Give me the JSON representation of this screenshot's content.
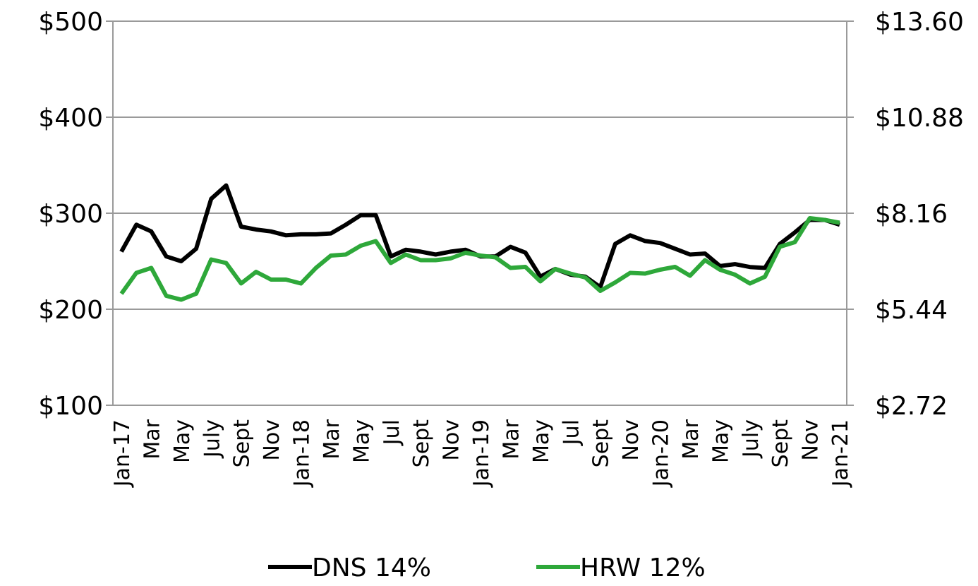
{
  "chart_data": {
    "type": "line",
    "categories": [
      "Jan-17",
      null,
      "Mar",
      null,
      "May",
      null,
      "July",
      null,
      "Sept",
      null,
      "Nov",
      null,
      "Jan-18",
      null,
      "Mar",
      null,
      "May",
      null,
      "Jul",
      null,
      "Sept",
      null,
      "Nov",
      null,
      "Jan-19",
      null,
      "Mar",
      null,
      "May",
      null,
      "Jul",
      null,
      "Sept",
      null,
      "Nov",
      null,
      "Jan-20",
      null,
      "Mar",
      null,
      "May",
      null,
      "July",
      null,
      "Sept",
      null,
      "Nov",
      null,
      "Jan-21"
    ],
    "series": [
      {
        "name": "DNS 14%",
        "color": "#000000",
        "values": [
          260,
          288,
          281,
          255,
          250,
          263,
          315,
          329,
          286,
          283,
          281,
          277,
          278,
          278,
          279,
          288,
          298,
          298,
          255,
          262,
          260,
          257,
          260,
          262,
          255,
          255,
          265,
          259,
          234,
          242,
          236,
          234,
          223,
          268,
          277,
          271,
          269,
          263,
          257,
          258,
          245,
          247,
          244,
          243,
          268,
          280,
          293,
          293,
          288
        ]
      },
      {
        "name": "HRW 12%",
        "color": "#2ea83a",
        "axis": "y2",
        "values": [
          5.88,
          6.47,
          6.61,
          5.82,
          5.71,
          5.88,
          6.85,
          6.75,
          6.17,
          6.5,
          6.28,
          6.28,
          6.17,
          6.61,
          6.96,
          6.99,
          7.24,
          7.37,
          6.75,
          6.99,
          6.83,
          6.83,
          6.88,
          7.04,
          6.96,
          6.91,
          6.61,
          6.64,
          6.23,
          6.58,
          6.45,
          6.34,
          5.96,
          6.2,
          6.47,
          6.45,
          6.56,
          6.64,
          6.39,
          6.83,
          6.56,
          6.42,
          6.17,
          6.36,
          7.21,
          7.34,
          8.02,
          7.97,
          7.89
        ]
      }
    ],
    "ylim": [
      100,
      500
    ],
    "yticks": [
      {
        "value": 100,
        "label": "$100"
      },
      {
        "value": 200,
        "label": "$200"
      },
      {
        "value": 300,
        "label": "$300"
      },
      {
        "value": 400,
        "label": "$400"
      },
      {
        "value": 500,
        "label": "$500"
      }
    ],
    "y2lim": [
      2.72,
      13.6
    ],
    "y2ticks": [
      {
        "value": 2.72,
        "label": "$2.72"
      },
      {
        "value": 5.44,
        "label": "$5.44"
      },
      {
        "value": 8.16,
        "label": "$8.16"
      },
      {
        "value": 10.88,
        "label": "$10.88"
      },
      {
        "value": 13.6,
        "label": "$13.60"
      }
    ],
    "grid": true,
    "legend": "bottom"
  }
}
